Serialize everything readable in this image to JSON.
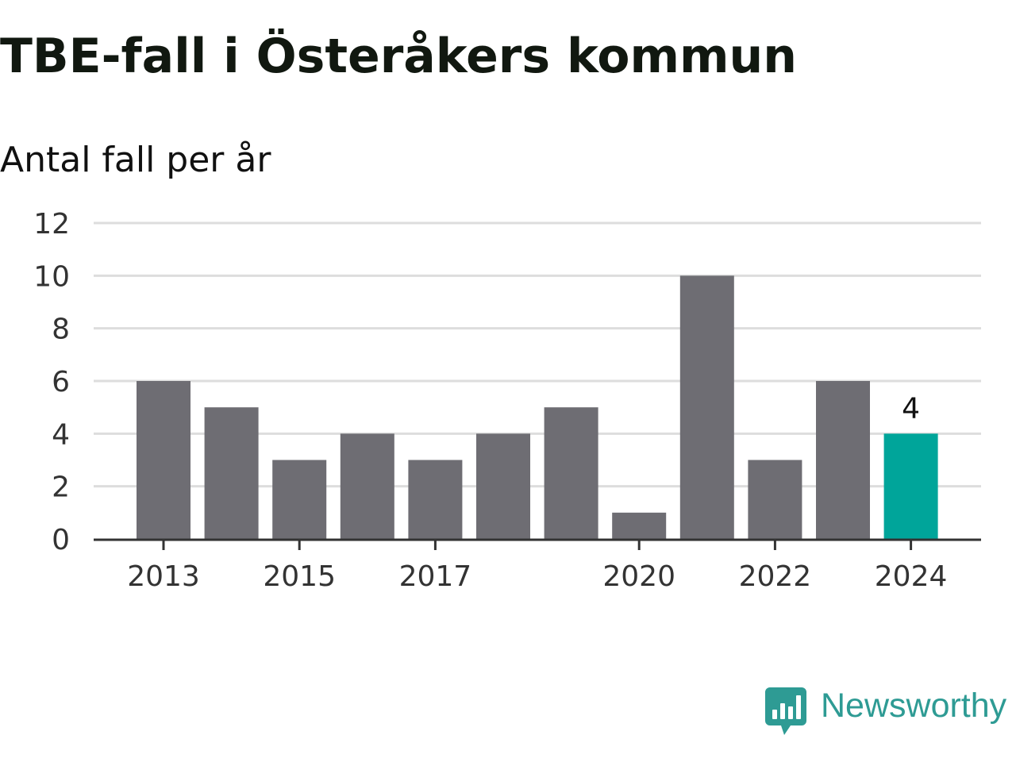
{
  "title": "TBE-fall i Österåkers kommun",
  "subtitle": "Antal fall per år",
  "brand": {
    "name": "Newsworthy",
    "icon": "bar-chart-speech-bubble-icon",
    "color": "#2e9b94"
  },
  "chart_data": {
    "type": "bar",
    "categories": [
      "2013",
      "2014",
      "2015",
      "2016",
      "2017",
      "2018",
      "2019",
      "2020",
      "2021",
      "2022",
      "2023",
      "2024"
    ],
    "values": [
      6,
      5,
      3,
      4,
      3,
      4,
      5,
      1,
      10,
      3,
      6,
      4
    ],
    "x_tick_labels": [
      "2013",
      "2015",
      "2017",
      "2020",
      "2022",
      "2024"
    ],
    "y_ticks": [
      0,
      2,
      4,
      6,
      8,
      10,
      12
    ],
    "ylim": [
      0,
      12
    ],
    "grid": true,
    "legend": "none",
    "highlight": {
      "category": "2024",
      "label": "4",
      "color": "#00a59a"
    },
    "bar_color": "#6e6d73",
    "gridline_color": "#dddddd",
    "axis_color": "#333333"
  }
}
